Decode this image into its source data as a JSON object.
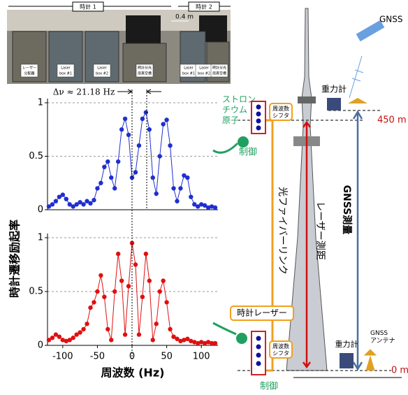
{
  "chart_data": [
    {
      "type": "line",
      "annotation": "Δν ≈ 21.18 Hz",
      "x": [
        -120,
        -115,
        -110,
        -105,
        -100,
        -95,
        -90,
        -85,
        -80,
        -75,
        -70,
        -65,
        -60,
        -55,
        -50,
        -45,
        -40,
        -35,
        -30,
        -25,
        -20,
        -15,
        -10,
        -5,
        0,
        5,
        10,
        15,
        20,
        25,
        30,
        35,
        40,
        45,
        50,
        55,
        60,
        65,
        70,
        75,
        80,
        85,
        90,
        95,
        100,
        105,
        110,
        115,
        120
      ],
      "series": [
        {
          "color": "#1f2fd0",
          "values": [
            0.03,
            0.05,
            0.08,
            0.12,
            0.14,
            0.1,
            0.05,
            0.03,
            0.05,
            0.07,
            0.05,
            0.08,
            0.06,
            0.09,
            0.2,
            0.25,
            0.4,
            0.45,
            0.3,
            0.2,
            0.45,
            0.75,
            0.85,
            0.7,
            0.3,
            0.35,
            0.6,
            0.85,
            0.91,
            0.75,
            0.3,
            0.15,
            0.5,
            0.8,
            0.84,
            0.6,
            0.2,
            0.08,
            0.2,
            0.32,
            0.3,
            0.12,
            0.05,
            0.03,
            0.05,
            0.04,
            0.02,
            0.03,
            0.02
          ]
        }
      ],
      "xlim": [
        -122,
        124
      ],
      "ylim": [
        0,
        1
      ],
      "yticks": [
        0,
        0.5,
        1
      ],
      "grid": true
    },
    {
      "type": "line",
      "xlabel": "周波数 (Hz)",
      "x": [
        -120,
        -115,
        -110,
        -105,
        -100,
        -95,
        -90,
        -85,
        -80,
        -75,
        -70,
        -65,
        -60,
        -55,
        -50,
        -45,
        -40,
        -35,
        -30,
        -25,
        -20,
        -15,
        -10,
        -5,
        0,
        5,
        10,
        15,
        20,
        25,
        30,
        35,
        40,
        45,
        50,
        55,
        60,
        65,
        70,
        75,
        80,
        85,
        90,
        95,
        100,
        105,
        110,
        115,
        120
      ],
      "series": [
        {
          "color": "#e01010",
          "values": [
            0.05,
            0.07,
            0.1,
            0.08,
            0.05,
            0.04,
            0.05,
            0.07,
            0.1,
            0.12,
            0.15,
            0.2,
            0.35,
            0.4,
            0.5,
            0.65,
            0.45,
            0.15,
            0.05,
            0.5,
            0.85,
            0.6,
            0.1,
            0.55,
            0.95,
            0.75,
            0.1,
            0.45,
            0.85,
            0.6,
            0.05,
            0.2,
            0.5,
            0.6,
            0.4,
            0.15,
            0.08,
            0.06,
            0.04,
            0.05,
            0.06,
            0.04,
            0.03,
            0.02,
            0.03,
            0.02,
            0.03,
            0.02,
            0.02
          ]
        }
      ],
      "xlim": [
        -122,
        124
      ],
      "ylim": [
        0,
        1
      ],
      "yticks": [
        0,
        0.5,
        1
      ],
      "xticks": [
        -100,
        -50,
        0,
        50,
        100
      ],
      "grid": true
    }
  ],
  "ylabel": "時計遷移励起率",
  "photo": {
    "clock1": "時計 1",
    "clock2": "時計 2",
    "distance": "0.4 m",
    "labels": [
      [
        "レーザー",
        "分配器"
      ],
      [
        "Laser",
        "box #1"
      ],
      [
        "Laser",
        "box #2"
      ],
      [
        "時計分光",
        "用真空槽"
      ],
      [
        "Laser",
        "box #1"
      ],
      [
        "Laser",
        "box #2"
      ],
      [
        "時計分光",
        "用真空槽"
      ]
    ]
  },
  "diagram": {
    "gnss_satellite": "GNSS",
    "gravimeter_top": "重力計",
    "height_top": "450 m",
    "atom": [
      "ストロン",
      "チウム",
      "原子"
    ],
    "shifter_top": [
      "周波数",
      "シフタ"
    ],
    "control_top": "制御",
    "fiber": "光ファイバーリンク",
    "laser_ranging": "レーザー測距",
    "gnss_survey": "GNSS測量",
    "clock_laser": "時計レーザー",
    "gravimeter_bottom": "重力計",
    "antenna": [
      "GNSS",
      "アンテナ"
    ],
    "height_bottom": "0 m",
    "shifter_bottom": [
      "周波数",
      "シフタ"
    ],
    "control_bottom": "制御"
  }
}
